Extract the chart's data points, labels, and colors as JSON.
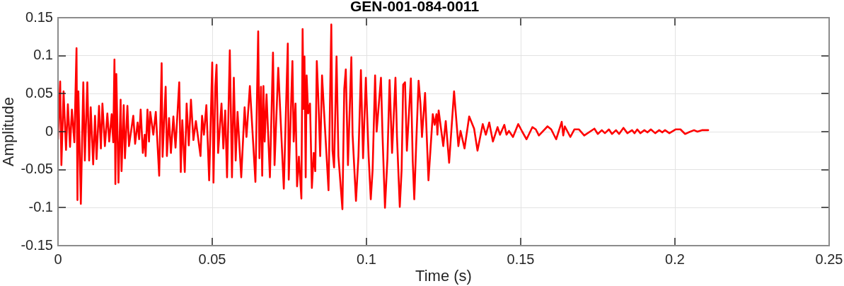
{
  "chart_data": {
    "type": "line",
    "title": "GEN-001-084-0011",
    "xlabel": "Time (s)",
    "ylabel": "Amplitude",
    "x": [
      0,
      0.0007,
      0.0011,
      0.0018,
      0.0026,
      0.0032,
      0.0039,
      0.0045,
      0.0053,
      0.006,
      0.0063,
      0.0066,
      0.0074,
      0.0082,
      0.0087,
      0.0095,
      0.0101,
      0.0106,
      0.0114,
      0.012,
      0.0125,
      0.0133,
      0.0139,
      0.0144,
      0.0152,
      0.016,
      0.0166,
      0.0174,
      0.0179,
      0.0183,
      0.0186,
      0.0189,
      0.0196,
      0.0203,
      0.0206,
      0.0213,
      0.0217,
      0.0225,
      0.023,
      0.0244,
      0.025,
      0.0258,
      0.0263,
      0.0268,
      0.0275,
      0.0281,
      0.0284,
      0.029,
      0.0295,
      0.0299,
      0.0309,
      0.0317,
      0.0328,
      0.0336,
      0.0339,
      0.0349,
      0.0353,
      0.036,
      0.0366,
      0.0374,
      0.0381,
      0.0393,
      0.0398,
      0.0403,
      0.0411,
      0.0417,
      0.0424,
      0.0431,
      0.0439,
      0.0447,
      0.0462,
      0.0467,
      0.0473,
      0.0481,
      0.049,
      0.05,
      0.0504,
      0.051,
      0.0514,
      0.0519,
      0.053,
      0.0536,
      0.0542,
      0.0548,
      0.0557,
      0.0564,
      0.057,
      0.0576,
      0.0582,
      0.0594,
      0.0605,
      0.0611,
      0.0622,
      0.064,
      0.0649,
      0.0653,
      0.0658,
      0.0662,
      0.0666,
      0.067,
      0.0676,
      0.0687,
      0.0697,
      0.0702,
      0.0714,
      0.0732,
      0.0745,
      0.0748,
      0.076,
      0.0764,
      0.077,
      0.0775,
      0.0781,
      0.0789,
      0.0793,
      0.0796,
      0.0799,
      0.0803,
      0.0806,
      0.0811,
      0.0817,
      0.0823,
      0.0829,
      0.0834,
      0.0839,
      0.0844,
      0.085,
      0.0856,
      0.0861,
      0.0877,
      0.0886,
      0.089,
      0.0895,
      0.0903,
      0.0909,
      0.0922,
      0.0928,
      0.0933,
      0.094,
      0.0951,
      0.0955,
      0.0966,
      0.0974,
      0.0982,
      0.0989,
      0.0998,
      0.1007,
      0.1014,
      0.102,
      0.1028,
      0.1033,
      0.1047,
      0.1052,
      0.106,
      0.1068,
      0.1075,
      0.1083,
      0.1094,
      0.1099,
      0.1108,
      0.1114,
      0.1119,
      0.1125,
      0.1131,
      0.1144,
      0.115,
      0.1155,
      0.1161,
      0.1169,
      0.1175,
      0.118,
      0.119,
      0.1201,
      0.1215,
      0.1221,
      0.1227,
      0.123,
      0.1234,
      0.1249,
      0.1257,
      0.1268,
      0.1284,
      0.1298,
      0.1305,
      0.1318,
      0.1333,
      0.1349,
      0.136,
      0.1377,
      0.1387,
      0.1398,
      0.141,
      0.1425,
      0.1433,
      0.1447,
      0.1454,
      0.1462,
      0.1475,
      0.1492,
      0.1505,
      0.1519,
      0.1538,
      0.1549,
      0.1559,
      0.1587,
      0.1599,
      0.1615,
      0.1633,
      0.1638,
      0.1643,
      0.1661,
      0.1674,
      0.1689,
      0.1706,
      0.1739,
      0.175,
      0.1763,
      0.1773,
      0.1786,
      0.1796,
      0.1809,
      0.1819,
      0.1833,
      0.1846,
      0.1861,
      0.1869,
      0.1878,
      0.1888,
      0.1901,
      0.1911,
      0.1922,
      0.1936,
      0.1949,
      0.1959,
      0.1968,
      0.1982,
      0.2002,
      0.2018,
      0.2033,
      0.2044,
      0.2062,
      0.2073,
      0.2089,
      0.2108
    ],
    "series": [
      {
        "color": "#ff0000",
        "values": [
          -0.01,
          0.066,
          -0.044,
          0.053,
          -0.024,
          0.036,
          -0.02,
          0.029,
          -0.014,
          0.11,
          -0.09,
          0.053,
          -0.095,
          0.065,
          -0.038,
          0.065,
          -0.038,
          0.032,
          -0.043,
          0.021,
          -0.036,
          0.034,
          -0.022,
          0.037,
          -0.019,
          0.024,
          -0.013,
          0.023,
          -0.014,
          0.095,
          -0.069,
          0.076,
          -0.067,
          0.042,
          -0.052,
          0.035,
          -0.035,
          0.034,
          -0.019,
          0.021,
          -0.016,
          0.012,
          -0.01,
          0.029,
          -0.028,
          -0.004,
          -0.032,
          0.029,
          -0.013,
          0.026,
          -0.004,
          0.026,
          -0.058,
          0.09,
          -0.033,
          0.059,
          -0.032,
          0.018,
          -0.028,
          0.02,
          -0.021,
          0.065,
          -0.053,
          0.015,
          -0.053,
          0.037,
          -0.018,
          0.042,
          -0.011,
          0.014,
          -0.032,
          0.021,
          -0.004,
          0.035,
          -0.064,
          0.091,
          -0.067,
          0.059,
          0.088,
          -0.028,
          0.037,
          -0.022,
          0.028,
          -0.06,
          0.107,
          -0.06,
          0.071,
          -0.038,
          0.026,
          -0.06,
          0.032,
          -0.007,
          0.06,
          -0.066,
          0.132,
          -0.035,
          0.059,
          -0.058,
          0.06,
          -0.013,
          0.049,
          -0.06,
          0.104,
          -0.044,
          0.084,
          -0.075,
          0.116,
          -0.063,
          0.093,
          -0.013,
          0.037,
          -0.072,
          -0.033,
          -0.088,
          0.135,
          0.03,
          0.099,
          -0.06,
          0.074,
          0.024,
          0.037,
          -0.074,
          -0.028,
          -0.052,
          0.093,
          0.043,
          -0.032,
          0.074,
          0.037,
          -0.077,
          0.141,
          -0.025,
          -0.047,
          0.099,
          -0.032,
          -0.102,
          0.056,
          0.082,
          -0.044,
          0.098,
          -0.004,
          -0.091,
          -0.032,
          0.081,
          -0.035,
          0.071,
          -0.032,
          -0.089,
          -0.05,
          0.074,
          0,
          0.071,
          -0.004,
          -0.1,
          -0.035,
          0.068,
          -0.028,
          0.071,
          -0.007,
          -0.099,
          -0.05,
          0.062,
          0.065,
          -0.025,
          0.07,
          -0.038,
          -0.089,
          -0.019,
          0.067,
          0.037,
          -0.007,
          0.051,
          -0.064,
          0.023,
          0.009,
          0.023,
          -0.004,
          0.028,
          -0.019,
          0.014,
          -0.041,
          0.053,
          -0.019,
          0.001,
          -0.022,
          0.02,
          0.004,
          -0.025,
          0.01,
          -0.004,
          0.012,
          -0.013,
          0.006,
          -0.004,
          0.009,
          -0.004,
          0.001,
          -0.007,
          0.01,
          0,
          -0.01,
          0.006,
          0.003,
          -0.005,
          0.007,
          0.003,
          -0.01,
          0.013,
          -0.005,
          0.007,
          -0.007,
          0.003,
          0.003,
          -0.005,
          0.004,
          -0.003,
          0.002,
          -0.002,
          0.003,
          -0.003,
          0.002,
          -0.003,
          0.005,
          -0.002,
          0.002,
          -0.002,
          0.003,
          -0.002,
          0.002,
          -0.001,
          0.003,
          -0.002,
          0.002,
          -0.001,
          0.002,
          -0.002,
          0.003,
          0.003,
          -0.003,
          -0.001,
          0.002,
          0,
          0.002,
          0.002
        ]
      }
    ],
    "xlim": [
      0,
      0.25
    ],
    "ylim": [
      -0.15,
      0.15
    ],
    "xticks": [
      0,
      0.05,
      0.1,
      0.15,
      0.2,
      0.25
    ],
    "yticks": [
      -0.15,
      -0.1,
      -0.05,
      0,
      0.05,
      0.1,
      0.15
    ],
    "grid": true,
    "line_style": "solid"
  }
}
